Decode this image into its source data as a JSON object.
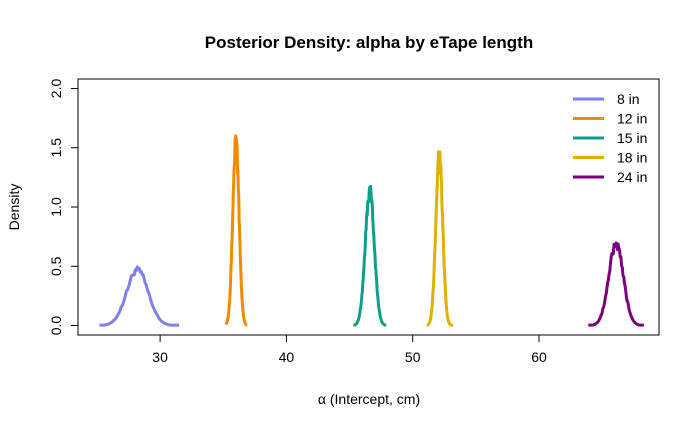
{
  "chart_data": {
    "type": "line",
    "title": "Posterior Density: alpha by eTape length",
    "xlabel": "α (Intercept, cm)",
    "ylabel": "Density",
    "xlim": [
      23.5,
      69.5
    ],
    "ylim": [
      -0.08,
      2.08
    ],
    "xticks": [
      30,
      40,
      50,
      60
    ],
    "yticks": [
      0.0,
      0.5,
      1.0,
      1.5,
      2.0
    ],
    "xtick_labels": [
      "30",
      "40",
      "50",
      "60"
    ],
    "ytick_labels": [
      "0.0",
      "0.5",
      "1.0",
      "1.5",
      "2.0"
    ],
    "legend_position": "top-right",
    "grid": false,
    "series": [
      {
        "name": "8 in",
        "color": "#7f7fee",
        "mean": 28.2,
        "sd": 0.85,
        "peak": 0.47,
        "xmin": 25.2,
        "xmax": 31.5
      },
      {
        "name": "12 in",
        "color": "#f28a00",
        "mean": 36.0,
        "sd": 0.25,
        "peak": 1.55,
        "xmin": 35.2,
        "xmax": 36.9
      },
      {
        "name": "15 in",
        "color": "#0f9e8a",
        "mean": 46.6,
        "sd": 0.36,
        "peak": 1.13,
        "xmin": 45.3,
        "xmax": 47.9
      },
      {
        "name": "18 in",
        "color": "#e0b000",
        "mean": 52.1,
        "sd": 0.27,
        "peak": 1.45,
        "xmin": 51.1,
        "xmax": 53.2
      },
      {
        "name": "24 in",
        "color": "#7a0080",
        "mean": 66.1,
        "sd": 0.58,
        "peak": 0.68,
        "xmin": 63.9,
        "xmax": 68.3
      }
    ]
  }
}
